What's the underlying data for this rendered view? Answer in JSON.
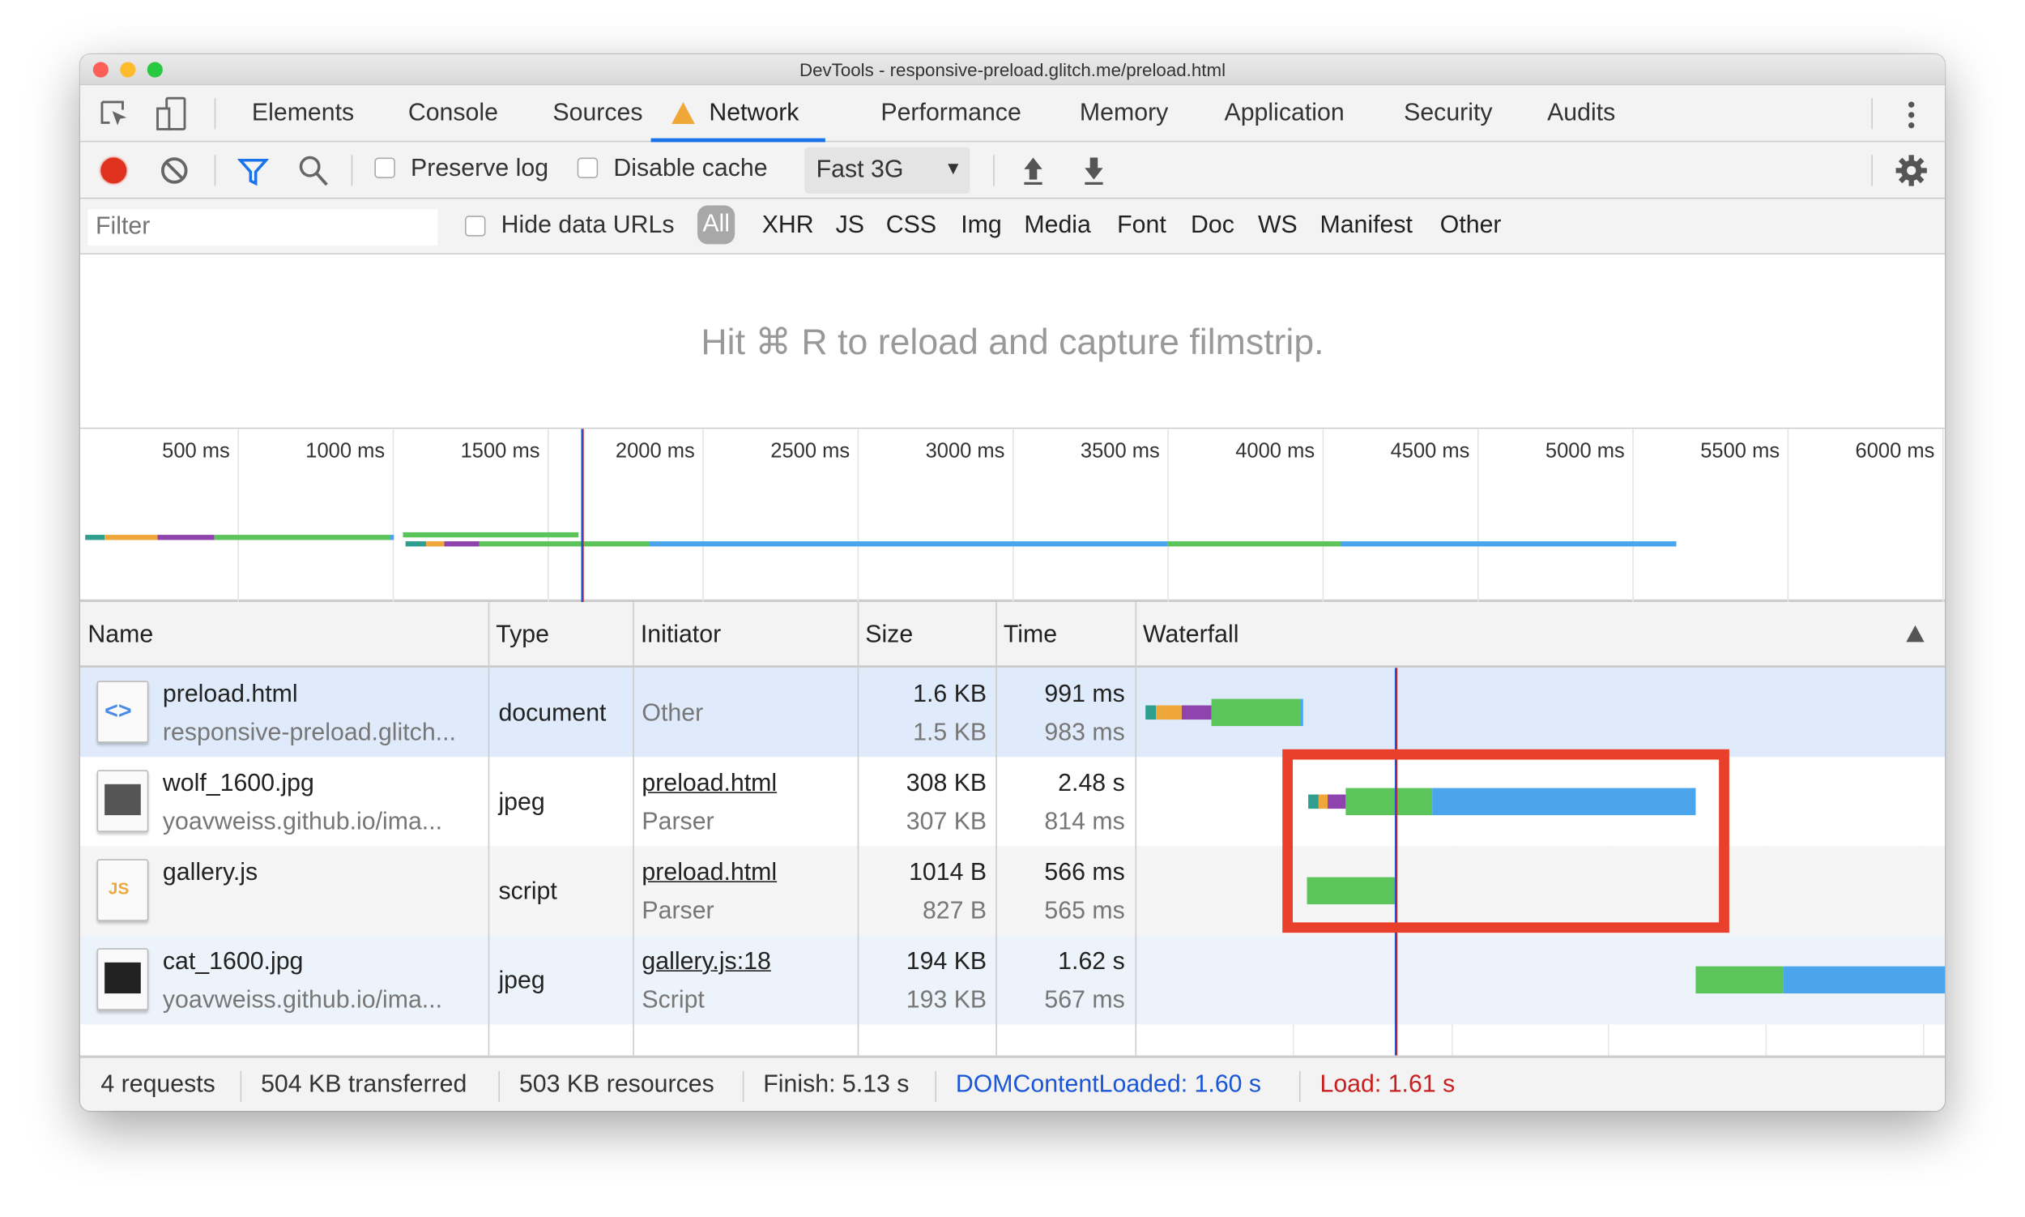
{
  "window": {
    "title": "DevTools - responsive-preload.glitch.me/preload.html"
  },
  "tabs": [
    {
      "label": "Elements"
    },
    {
      "label": "Console"
    },
    {
      "label": "Sources"
    },
    {
      "label": "Network",
      "active": true,
      "icon": "warning-icon"
    },
    {
      "label": "Performance"
    },
    {
      "label": "Memory"
    },
    {
      "label": "Application"
    },
    {
      "label": "Security"
    },
    {
      "label": "Audits"
    }
  ],
  "toolbar": {
    "preserve_log": "Preserve log",
    "preserve_log_checked": false,
    "disable_cache": "Disable cache",
    "disable_cache_checked": false,
    "throttling": "Fast 3G"
  },
  "filter": {
    "placeholder": "Filter",
    "hide_data_urls": "Hide data URLs",
    "types": [
      "All",
      "XHR",
      "JS",
      "CSS",
      "Img",
      "Media",
      "Font",
      "Doc",
      "WS",
      "Manifest",
      "Other"
    ],
    "selected_type": "All"
  },
  "filmstrip": {
    "message": "Hit ⌘ R to reload and capture filmstrip."
  },
  "overview": {
    "ticks": [
      "500 ms",
      "1000 ms",
      "1500 ms",
      "2000 ms",
      "2500 ms",
      "3000 ms",
      "3500 ms",
      "4000 ms",
      "4500 ms",
      "5000 ms",
      "5500 ms",
      "6000 ms"
    ],
    "marker_ms": 1610
  },
  "colors": {
    "teal": "#2e9e8f",
    "orange": "#f0a73a",
    "purple": "#8f44ad",
    "green": "#5bc55b",
    "blue": "#4aa5ec",
    "dcl": "#1a56d6",
    "load": "#c8201e",
    "highlight": "#e8402a"
  },
  "columns": [
    "Name",
    "Type",
    "Initiator",
    "Size",
    "Time",
    "Waterfall"
  ],
  "rows": [
    {
      "name": "preload.html",
      "path": "responsive-preload.glitch...",
      "type": "document",
      "initiator": "Other",
      "initiator_link": false,
      "initiator_sub": "",
      "size": "1.6 KB",
      "size_sub": "1.5 KB",
      "time": "991 ms",
      "time_sub": "983 ms",
      "icon": "html-file-icon",
      "timing": [
        {
          "c": "teal",
          "s": 10,
          "e": 70
        },
        {
          "c": "orange",
          "s": 70,
          "e": 240
        },
        {
          "c": "purple",
          "s": 240,
          "e": 425
        },
        {
          "c": "green",
          "s": 425,
          "e": 990
        },
        {
          "c": "blue",
          "s": 990,
          "e": 1005
        }
      ]
    },
    {
      "name": "wolf_1600.jpg",
      "path": "yoavweiss.github.io/ima...",
      "type": "jpeg",
      "initiator": "preload.html",
      "initiator_link": true,
      "initiator_sub": "Parser",
      "size": "308 KB",
      "size_sub": "307 KB",
      "time": "2.48 s",
      "time_sub": "814 ms",
      "icon": "image-file-icon",
      "timing": [
        {
          "c": "teal",
          "s": 1040,
          "e": 1110
        },
        {
          "c": "orange",
          "s": 1110,
          "e": 1165
        },
        {
          "c": "purple",
          "s": 1165,
          "e": 1280
        },
        {
          "c": "green",
          "s": 1280,
          "e": 1830
        },
        {
          "c": "blue",
          "s": 1830,
          "e": 3500
        }
      ]
    },
    {
      "name": "gallery.js",
      "path": "",
      "type": "script",
      "initiator": "preload.html",
      "initiator_link": true,
      "initiator_sub": "Parser",
      "size": "1014 B",
      "size_sub": "827 B",
      "time": "566 ms",
      "time_sub": "565 ms",
      "icon": "js-file-icon",
      "timing": [
        {
          "c": "green",
          "s": 1035,
          "e": 1600
        }
      ]
    },
    {
      "name": "cat_1600.jpg",
      "path": "yoavweiss.github.io/ima...",
      "type": "jpeg",
      "initiator": "gallery.js:18",
      "initiator_link": true,
      "initiator_sub": "Script",
      "size": "194 KB",
      "size_sub": "193 KB",
      "time": "1.62 s",
      "time_sub": "567 ms",
      "icon": "image-file-icon",
      "timing": [
        {
          "c": "green",
          "s": 3500,
          "e": 4060
        },
        {
          "c": "blue",
          "s": 4060,
          "e": 5140
        }
      ]
    }
  ],
  "footer": {
    "requests": "4 requests",
    "transferred": "504 KB transferred",
    "resources": "503 KB resources",
    "finish": "Finish: 5.13 s",
    "dcl": "DOMContentLoaded: 1.60 s",
    "load": "Load: 1.61 s"
  }
}
